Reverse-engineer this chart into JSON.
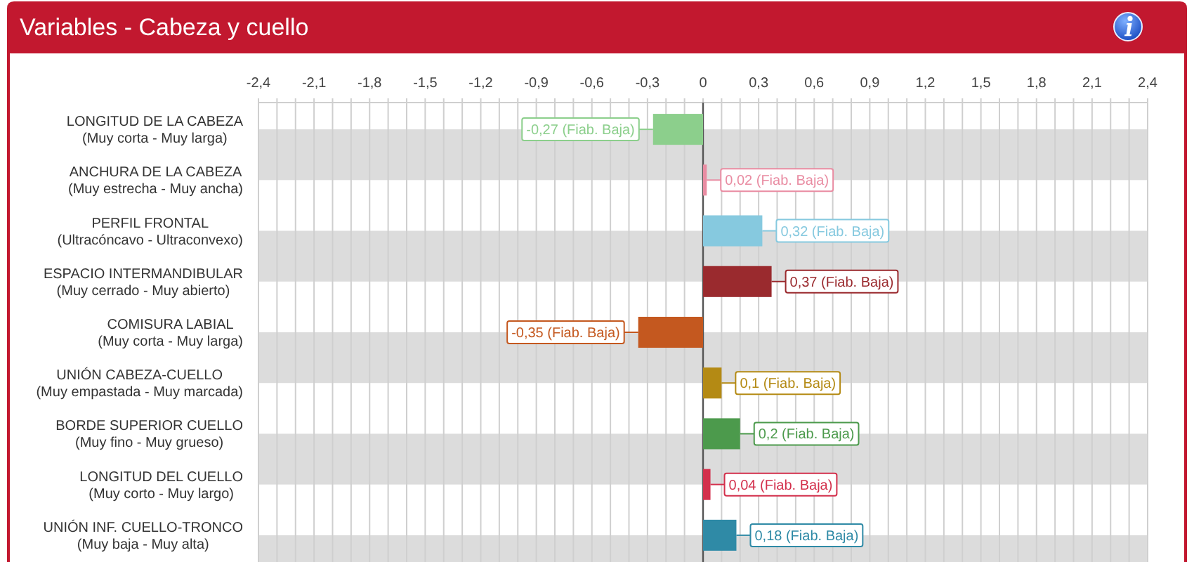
{
  "chart_data": {
    "type": "bar",
    "orientation": "horizontal",
    "title": "Variables - Cabeza y cuello",
    "categories": [
      "LONGITUD DE LA CABEZA\n(Muy corta - Muy larga)",
      "ANCHURA DE LA CABEZA\n(Muy estrecha - Muy ancha)",
      "PERFIL FRONTAL\n(Ultracóncavo - Ultraconvexo)",
      "ESPACIO INTERMANDIBULAR\n(Muy cerrado - Muy abierto)",
      "COMISURA LABIAL\n(Muy corta - Muy larga)",
      "UNIÓN CABEZA-CUELLO\n(Muy empastada - Muy marcada)",
      "BORDE SUPERIOR CUELLO\n(Muy fino - Muy grueso)",
      "LONGITUD DEL CUELLO\n(Muy corto - Muy largo)",
      "UNIÓN INF. CUELLO-TRONCO\n(Muy baja - Muy alta)"
    ],
    "values": [
      -0.27,
      0.02,
      0.32,
      0.37,
      -0.35,
      0.1,
      0.2,
      0.04,
      0.18
    ],
    "colors": [
      "#8ccf8c",
      "#e98ca2",
      "#86c9df",
      "#9a2a2e",
      "#c4581f",
      "#b48a14",
      "#4c9a4c",
      "#d3304c",
      "#2f8aa6"
    ],
    "value_labels": [
      "-0,27 (Fiab. Baja)",
      "0,02 (Fiab. Baja)",
      "0,32 (Fiab. Baja)",
      "0,37 (Fiab. Baja)",
      "-0,35 (Fiab. Baja)",
      "0,1 (Fiab. Baja)",
      "0,2 (Fiab. Baja)",
      "0,04 (Fiab. Baja)",
      "0,18 (Fiab. Baja)"
    ],
    "xlim": [
      -2.4,
      2.4
    ],
    "xticks": [
      {
        "value": -2.4,
        "label": "-2,4"
      },
      {
        "value": -2.3,
        "label": null
      },
      {
        "value": -2.2,
        "label": null
      },
      {
        "value": -2.1,
        "label": "-2,1"
      },
      {
        "value": -2.0,
        "label": null
      },
      {
        "value": -1.9,
        "label": null
      },
      {
        "value": -1.8,
        "label": "-1,8"
      },
      {
        "value": -1.7,
        "label": null
      },
      {
        "value": -1.6,
        "label": null
      },
      {
        "value": -1.5,
        "label": "-1,5"
      },
      {
        "value": -1.4,
        "label": null
      },
      {
        "value": -1.3,
        "label": null
      },
      {
        "value": -1.2,
        "label": "-1,2"
      },
      {
        "value": -1.1,
        "label": null
      },
      {
        "value": -1.0,
        "label": null
      },
      {
        "value": -0.9,
        "label": "-0,9"
      },
      {
        "value": -0.8,
        "label": null
      },
      {
        "value": -0.7,
        "label": null
      },
      {
        "value": -0.6,
        "label": "-0,6"
      },
      {
        "value": -0.5,
        "label": null
      },
      {
        "value": -0.4,
        "label": null
      },
      {
        "value": -0.3,
        "label": "-0,3"
      },
      {
        "value": -0.2,
        "label": null
      },
      {
        "value": -0.1,
        "label": null
      },
      0,
      {
        "value": 0.1,
        "label": null
      },
      {
        "value": 0.2,
        "label": null
      },
      {
        "value": 0.3,
        "label": "0,3"
      },
      {
        "value": 0.4,
        "label": null
      },
      {
        "value": 0.5,
        "label": null
      },
      {
        "value": 0.6,
        "label": "0,6"
      },
      {
        "value": 0.7,
        "label": null
      },
      {
        "value": 0.8,
        "label": null
      },
      {
        "value": 0.9,
        "label": "0,9"
      },
      {
        "value": 1.0,
        "label": null
      },
      {
        "value": 1.1,
        "label": null
      },
      {
        "value": 1.2,
        "label": "1,2"
      },
      {
        "value": 1.3,
        "label": null
      },
      {
        "value": 1.4,
        "label": null
      },
      {
        "value": 1.5,
        "label": "1,5"
      },
      {
        "value": 1.6,
        "label": null
      },
      {
        "value": 1.7,
        "label": null
      },
      {
        "value": 1.8,
        "label": "1,8"
      },
      {
        "value": 1.9,
        "label": null
      },
      {
        "value": 2.0,
        "label": null
      },
      {
        "value": 2.1,
        "label": "2,1"
      },
      {
        "value": 2.2,
        "label": null
      },
      {
        "value": 2.3,
        "label": null
      },
      {
        "value": 2.4,
        "label": "2,4"
      }
    ],
    "grid": "x"
  }
}
